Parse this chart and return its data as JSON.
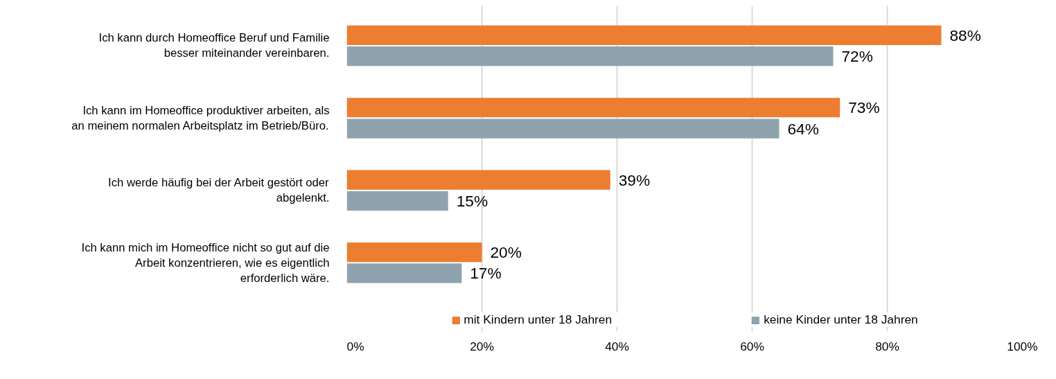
{
  "chart_data": {
    "type": "bar",
    "orientation": "horizontal",
    "categories": [
      "Ich kann durch Homeoffice Beruf und Familie besser miteinander vereinbaren.",
      "Ich kann im Homeoffice produktiver arbeiten, als an meinem normalen Arbeitsplatz im Betrieb/Büro.",
      "Ich werde häufig bei der Arbeit gestört oder abgelenkt.",
      "Ich kann mich im Homeoffice nicht so gut auf die Arbeit konzentrieren, wie es eigentlich erforderlich wäre."
    ],
    "series": [
      {
        "name": "mit Kindern unter 18 Jahren",
        "color": "#ed7d31",
        "values": [
          88,
          73,
          39,
          20
        ],
        "value_labels": [
          "88%",
          "73%",
          "39%",
          "20%"
        ]
      },
      {
        "name": "keine Kinder unter 18 Jahren",
        "color": "#8fa3ae",
        "values": [
          72,
          64,
          15,
          17
        ],
        "value_labels": [
          "72%",
          "64%",
          "15%",
          "17%"
        ]
      }
    ],
    "xlim": [
      0,
      100
    ],
    "xticks": [
      {
        "value": 0,
        "label": "0%"
      },
      {
        "value": 20,
        "label": "20%"
      },
      {
        "value": 40,
        "label": "40%"
      },
      {
        "value": 60,
        "label": "60%"
      },
      {
        "value": 80,
        "label": "80%"
      },
      {
        "value": 100,
        "label": "100%"
      }
    ],
    "grid": "x",
    "legend": "bottom"
  }
}
